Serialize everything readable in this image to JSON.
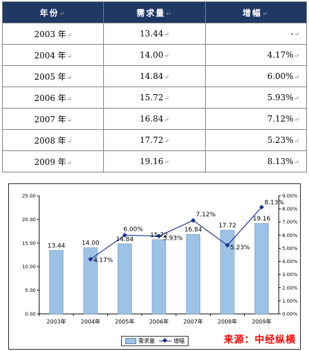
{
  "table": {
    "headers": [
      "年份",
      "需求量",
      "增幅"
    ],
    "rows": [
      [
        "2003 年",
        "13.44",
        "-"
      ],
      [
        "2004 年",
        "14.00",
        "4.17%"
      ],
      [
        "2005 年",
        "14.84",
        "6.00%"
      ],
      [
        "2006 年",
        "15.72",
        "5.93%"
      ],
      [
        "2007 年",
        "16.84",
        "7.12%"
      ],
      [
        "2008 年",
        "17.72",
        "5.23%"
      ],
      [
        "2009 年",
        "19.16",
        "8.13%"
      ]
    ],
    "paragraph_mark": "↵"
  },
  "chart_data": {
    "type": "bar",
    "categories": [
      "2003年",
      "2004年",
      "2005年",
      "2006年",
      "2007年",
      "2008年",
      "2009年"
    ],
    "series": [
      {
        "name": "需求量",
        "type": "bar",
        "axis": "left",
        "color": "#9cc3e6",
        "values": [
          13.44,
          14.0,
          14.84,
          15.72,
          16.84,
          17.72,
          19.16
        ],
        "labels": [
          "13.44",
          "14.00",
          "14.84",
          "15.72",
          "16.84",
          "17.72",
          "19.16"
        ]
      },
      {
        "name": "增幅",
        "type": "line",
        "axis": "right",
        "color": "#1c2f8c",
        "values": [
          null,
          4.17,
          6.0,
          5.93,
          7.12,
          5.23,
          8.13
        ],
        "labels": [
          "",
          "4.17%",
          "6.00%",
          "5.93%",
          "7.12%",
          "5.23%",
          "8.13%"
        ]
      }
    ],
    "y_left": {
      "range": [
        0,
        25
      ],
      "ticks": [
        "0.00",
        "5.00",
        "10.00",
        "15.00",
        "20.00",
        "25.00"
      ]
    },
    "y_right": {
      "range": [
        0,
        9
      ],
      "ticks": [
        "0.00%",
        "1.00%",
        "2.00%",
        "3.00%",
        "4.00%",
        "5.00%",
        "6.00%",
        "7.00%",
        "8.00%",
        "9.00%"
      ]
    },
    "grid": false,
    "legend_position": "bottom",
    "legend": [
      "需求量",
      "增幅"
    ]
  },
  "source_text": "来源：中经纵横"
}
